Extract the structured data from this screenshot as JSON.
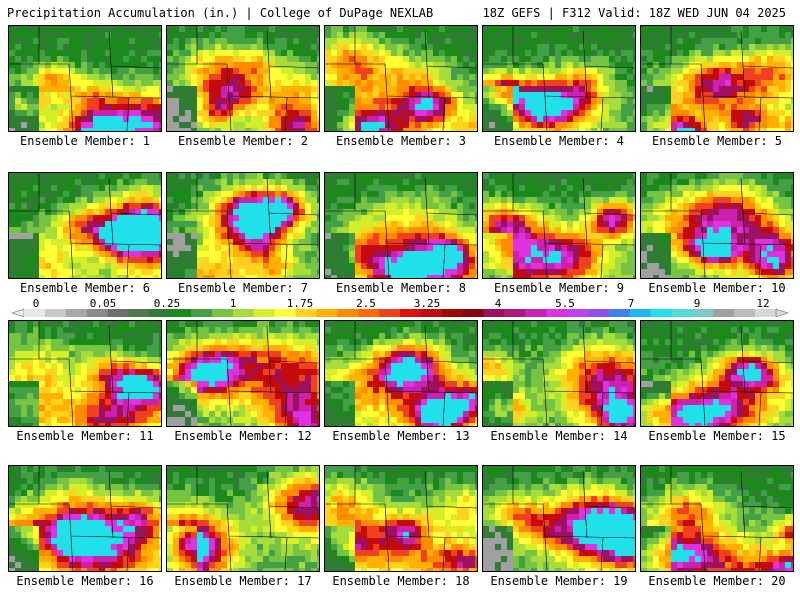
{
  "header": {
    "left_title": "Precipitation Accumulation (in.) | College of DuPage NEXLAB",
    "right_title": "18Z GEFS | F312 Valid: 18Z WED JUN 04 2025"
  },
  "colorbar": {
    "labels": [
      "0",
      "0.05",
      "0.25",
      "1",
      "1.75",
      "2.5",
      "3.25",
      "4",
      "5.5",
      "7",
      "9",
      "12"
    ],
    "colors": [
      "#e8e8e8",
      "#c8c8c8",
      "#a8a8a8",
      "#8a8a8a",
      "#6e6e6e",
      "#4f7a4f",
      "#2e7d32",
      "#1b8a1b",
      "#43a047",
      "#76c442",
      "#a6dd3a",
      "#d4ee2a",
      "#ffff33",
      "#ffd21f",
      "#ffb000",
      "#ff8c00",
      "#ff6a00",
      "#f04020",
      "#e01010",
      "#c40a0a",
      "#a00808",
      "#860410",
      "#9e1060",
      "#b21680",
      "#cc20b0",
      "#e030e0",
      "#c040f0",
      "#9050f0",
      "#4080f0",
      "#20b8f0",
      "#20e0ea",
      "#50dcd8",
      "#80c8c8",
      "#a0a0a0",
      "#bcbcbc",
      "#d8d8d8"
    ]
  },
  "panels": [
    {
      "label": "Ensemble Member: 1"
    },
    {
      "label": "Ensemble Member: 2"
    },
    {
      "label": "Ensemble Member: 3"
    },
    {
      "label": "Ensemble Member: 4"
    },
    {
      "label": "Ensemble Member: 5"
    },
    {
      "label": "Ensemble Member: 6"
    },
    {
      "label": "Ensemble Member: 7"
    },
    {
      "label": "Ensemble Member: 8"
    },
    {
      "label": "Ensemble Member: 9"
    },
    {
      "label": "Ensemble Member: 10"
    },
    {
      "label": "Ensemble Member: 11"
    },
    {
      "label": "Ensemble Member: 12"
    },
    {
      "label": "Ensemble Member: 13"
    },
    {
      "label": "Ensemble Member: 14"
    },
    {
      "label": "Ensemble Member: 15"
    },
    {
      "label": "Ensemble Member: 16"
    },
    {
      "label": "Ensemble Member: 17"
    },
    {
      "label": "Ensemble Member: 18"
    },
    {
      "label": "Ensemble Member: 19"
    },
    {
      "label": "Ensemble Member: 20"
    }
  ]
}
